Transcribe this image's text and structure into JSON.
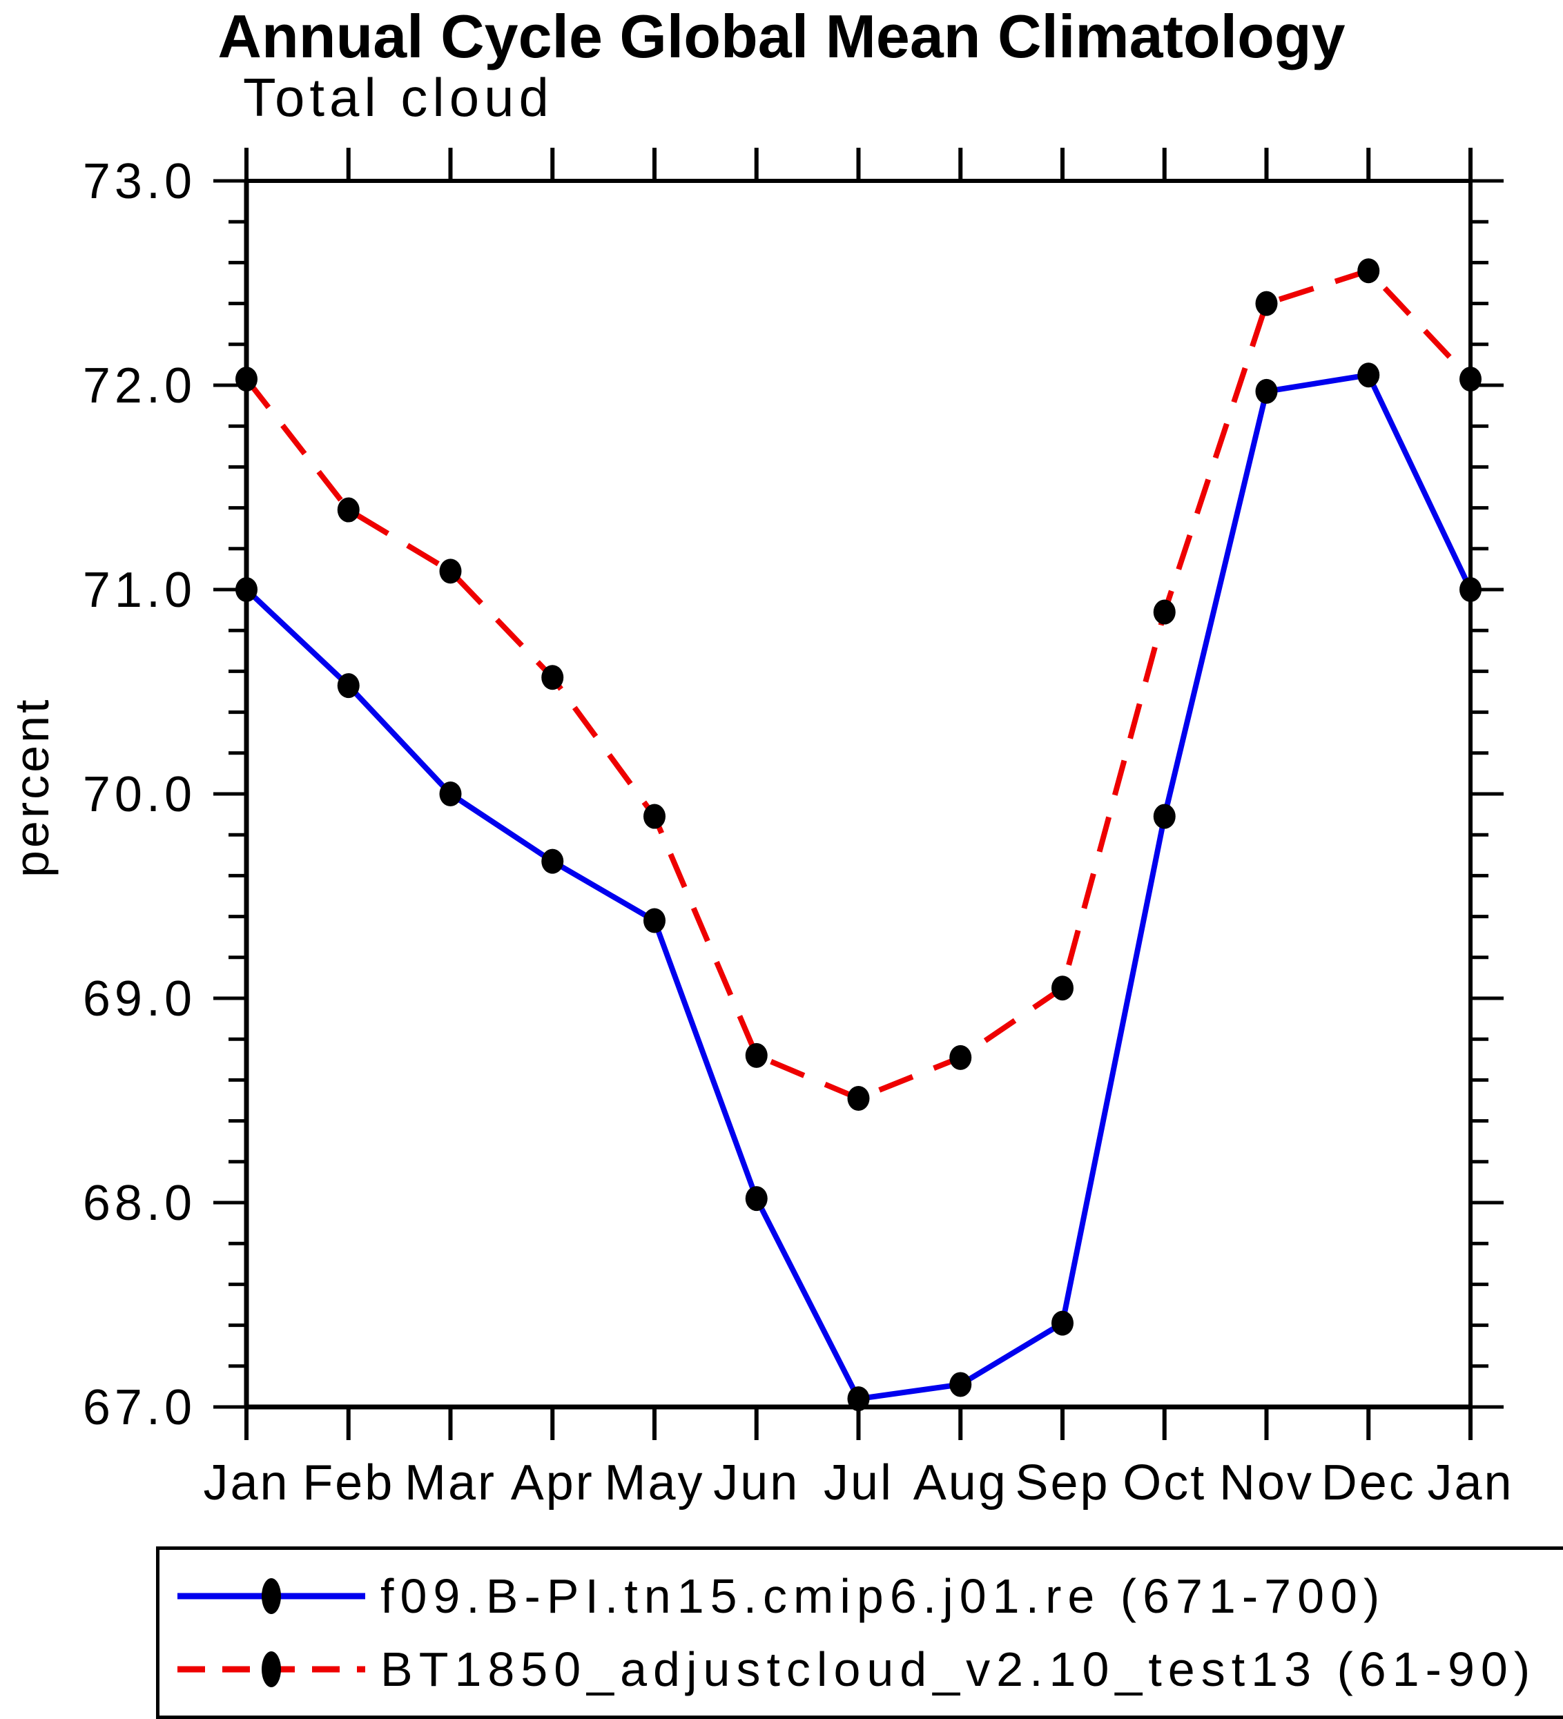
{
  "title": "Annual Cycle Global Mean Climatology",
  "subtitle": "Total cloud",
  "ylabel": "percent",
  "legend": {
    "entries": [
      {
        "label": "f09.B-PI.tn15.cmip6.j01.re (671-700)",
        "color": "#0000ee",
        "style": "solid"
      },
      {
        "label": "BT1850_adjustcloud_v2.10_test13 (61-90)",
        "color": "#ee0000",
        "style": "dashed"
      }
    ]
  },
  "chart_data": {
    "type": "line",
    "title": "Annual Cycle Global Mean Climatology",
    "subtitle": "Total cloud",
    "xlabel": "",
    "ylabel": "percent",
    "categories": [
      "Jan",
      "Feb",
      "Mar",
      "Apr",
      "May",
      "Jun",
      "Jul",
      "Aug",
      "Sep",
      "Oct",
      "Nov",
      "Dec",
      "Jan"
    ],
    "series": [
      {
        "name": "f09.B-PI.tn15.cmip6.j01.re (671-700)",
        "color": "#0000ee",
        "line_style": "solid",
        "marker": "filled-circle",
        "values": [
          71.0,
          70.53,
          70.0,
          69.67,
          69.38,
          68.02,
          67.04,
          67.11,
          67.41,
          69.89,
          71.97,
          72.05,
          71.0
        ]
      },
      {
        "name": "BT1850_adjustcloud_v2.10_test13 (61-90)",
        "color": "#ee0000",
        "line_style": "dashed",
        "marker": "filled-circle",
        "values": [
          72.03,
          71.39,
          71.09,
          70.57,
          69.89,
          68.72,
          68.51,
          68.71,
          69.05,
          70.89,
          72.4,
          72.56,
          72.03
        ]
      }
    ],
    "marker_color": "#000000",
    "ylim": [
      67.0,
      73.0
    ],
    "ytick_labels": [
      "67.0",
      "68.0",
      "69.0",
      "70.0",
      "71.0",
      "72.0",
      "73.0"
    ],
    "y_major_step": 1.0,
    "y_minor_step": 0.2,
    "grid": false,
    "legend_position": "bottom"
  }
}
